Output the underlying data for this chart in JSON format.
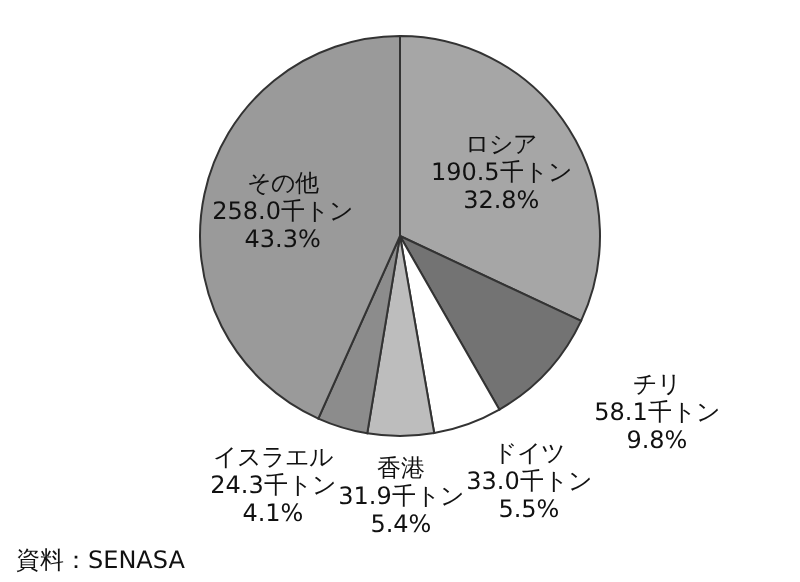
{
  "chart_data": {
    "type": "pie",
    "categories": [
      "ロシア",
      "チリ",
      "ドイツ",
      "香港",
      "イスラエル",
      "その他"
    ],
    "values": [
      190.5,
      58.1,
      33.0,
      31.9,
      24.3,
      258.0
    ],
    "value_labels": [
      "190.5千トン\n32.8%",
      "58.1千トン\n9.8%",
      "33.0千トン\n5.5%",
      "31.9千トン\n5.4%",
      "24.3千トン\n4.1%",
      "258.0千トン\n43.3%"
    ],
    "colors": [
      "#a6a6a6",
      "#737373",
      "#ffffff",
      "#bdbdbd",
      "#8c8c8c",
      "#9a9a9a"
    ],
    "annotations": [
      "資料：SENASA"
    ]
  }
}
